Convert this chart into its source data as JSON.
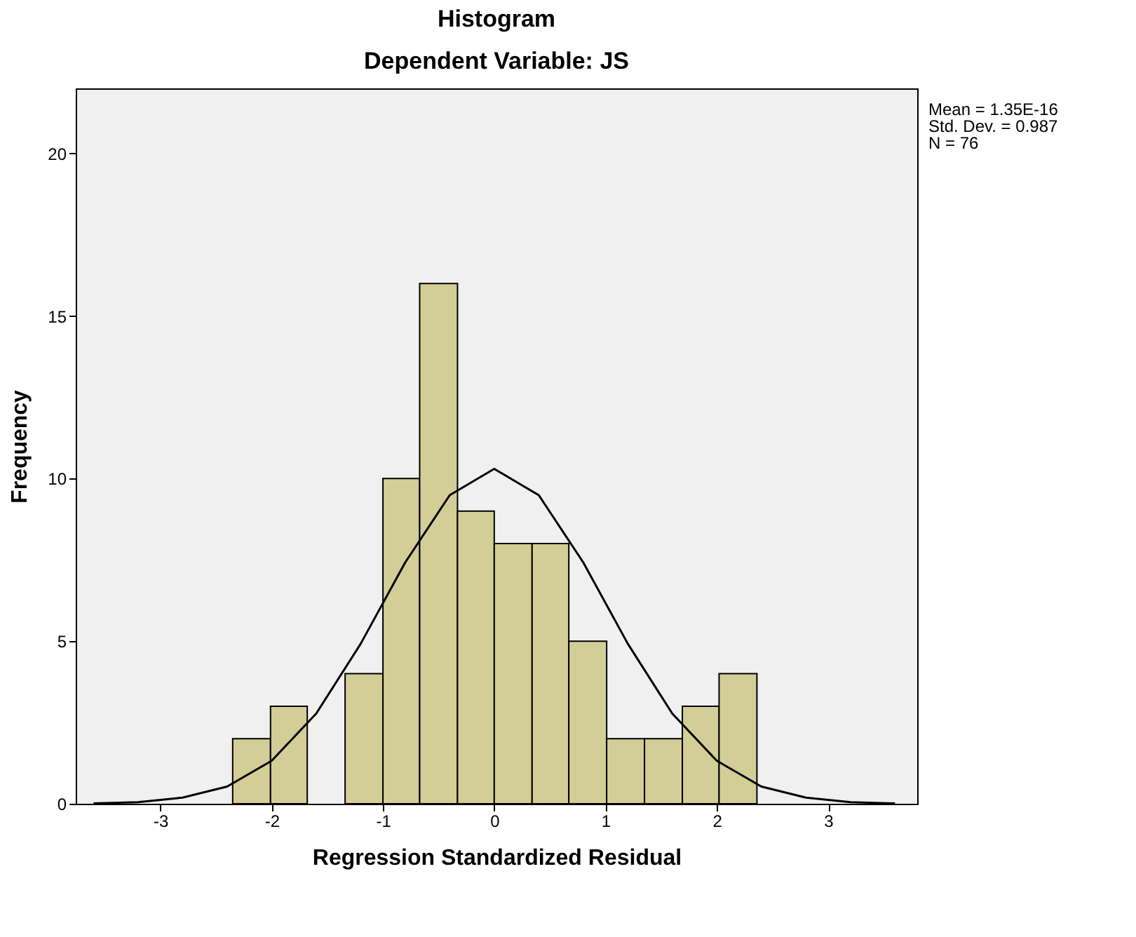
{
  "chart_data": {
    "type": "histogram",
    "title": "Histogram",
    "subtitle": "Dependent Variable: JS",
    "xlabel": "Regression Standardized Residual",
    "ylabel": "Frequency",
    "bins": [
      -2.35,
      -2.01,
      -1.68,
      -1.34,
      -1.0,
      -0.67,
      -0.33,
      0.0,
      0.34,
      0.67,
      1.01,
      1.35,
      1.69,
      2.02,
      2.36
    ],
    "values": [
      2,
      3,
      0,
      4,
      10,
      16,
      9,
      8,
      8,
      5,
      2,
      2,
      3,
      4
    ],
    "color": "#d3ce97",
    "series": [
      {
        "type": "line",
        "color": "#000000",
        "x": [
          -3.6,
          -3.2,
          -2.8,
          -2.4,
          -2.0,
          -1.6,
          -1.2,
          -0.8,
          -0.4,
          0.0,
          0.4,
          0.8,
          1.2,
          1.6,
          2.0,
          2.4,
          2.8,
          3.2,
          3.6
        ],
        "values": [
          0.01,
          0.05,
          0.19,
          0.53,
          1.32,
          2.77,
          4.92,
          7.42,
          9.49,
          10.3,
          9.49,
          7.42,
          4.92,
          2.77,
          1.32,
          0.53,
          0.19,
          0.05,
          0.01
        ]
      }
    ],
    "xlim": [
      -3.76,
      3.8
    ],
    "xticks": [
      -3,
      -2,
      -1,
      0,
      1,
      2,
      3
    ],
    "ylim": [
      0,
      22
    ],
    "yticks": [
      0,
      5,
      10,
      15,
      20
    ],
    "grid": false,
    "line_style": "solid",
    "marker": "none",
    "annotations": [
      "Mean = 1.35E-16",
      "Std. Dev. = 0.987",
      "N = 76"
    ]
  }
}
